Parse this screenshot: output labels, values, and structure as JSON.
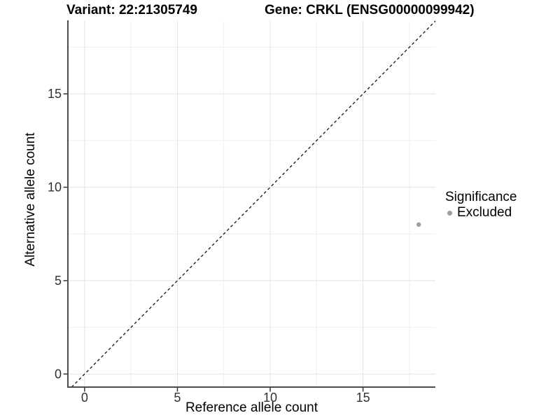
{
  "titles": {
    "variant": "Variant: 22:21305749",
    "gene": "Gene: CRKL (ENSG00000099942)"
  },
  "axes": {
    "x_label": "Reference allele count",
    "y_label": "Alternative allele count"
  },
  "legend": {
    "title": "Significance",
    "items": [
      {
        "label": "Excluded",
        "color": "#9e9e9e",
        "marker": "dot-icon"
      }
    ]
  },
  "colors": {
    "background": "#ffffff",
    "grid_major": "#e3e3e3",
    "grid_minor": "#efefef",
    "axis_line": "#4d4d4d",
    "tick_mark": "#333333",
    "tick_label": "#303030",
    "dashed_line": "#111111",
    "point": "#9e9e9e",
    "title_text": "#000000"
  },
  "chart_data": {
    "type": "scatter",
    "title": "Variant: 22:21305749    Gene: CRKL (ENSG00000099942)",
    "xlabel": "Reference allele count",
    "ylabel": "Alternative allele count",
    "xlim": [
      -0.9,
      18.9
    ],
    "ylim": [
      -0.7,
      18.9
    ],
    "xticks": [
      0,
      5,
      10,
      15
    ],
    "yticks": [
      0,
      5,
      10,
      15
    ],
    "xticks_minor": [
      2.5,
      7.5,
      12.5,
      17.5
    ],
    "yticks_minor": [
      2.5,
      7.5,
      12.5,
      17.5
    ],
    "grid": true,
    "legend_position": "right",
    "series": [
      {
        "name": "Excluded",
        "color": "#9e9e9e",
        "marker_radius": 3.2,
        "points": [
          {
            "x": 18,
            "y": 8
          }
        ]
      }
    ],
    "reference_line": {
      "type": "identity",
      "slope": 1,
      "intercept": 0,
      "style": "dashed",
      "color": "#111111"
    }
  }
}
